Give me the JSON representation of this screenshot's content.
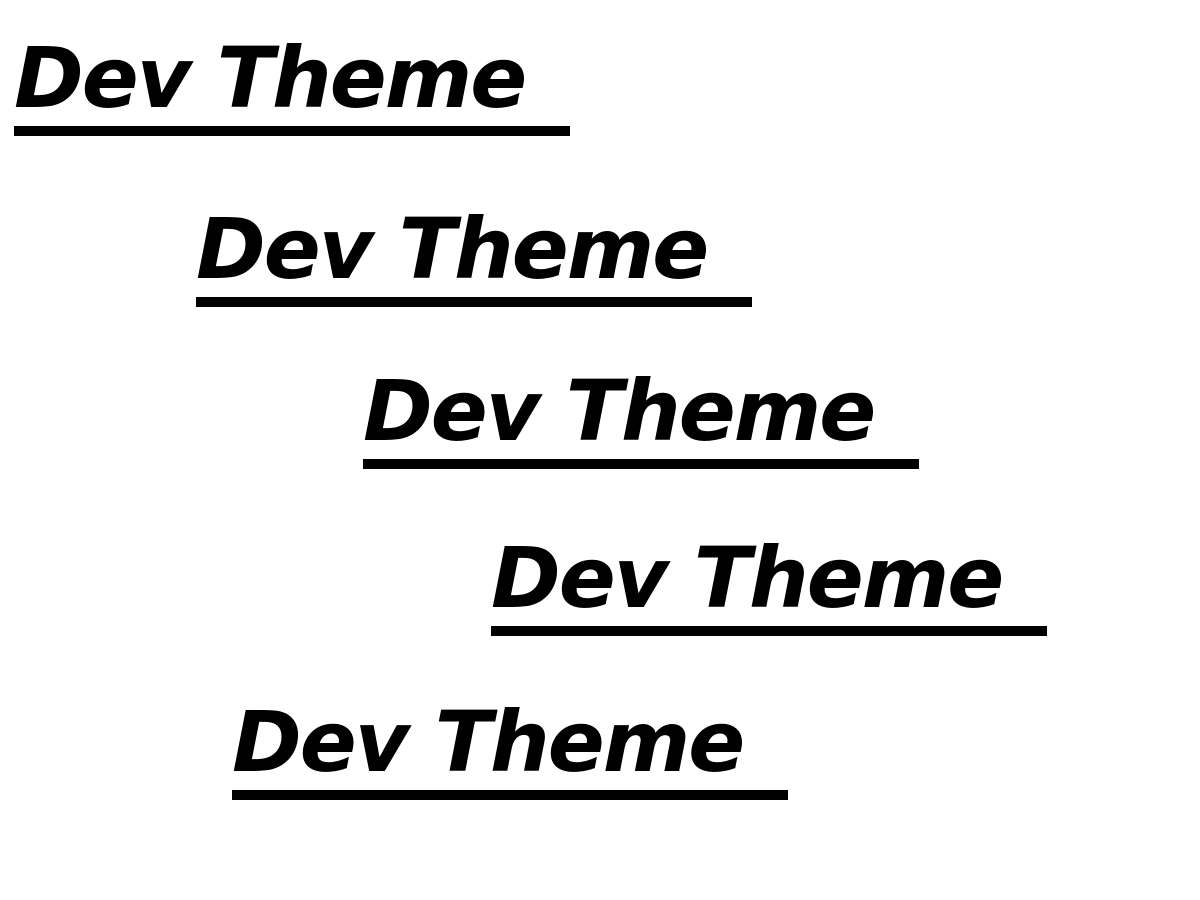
{
  "labels": [
    {
      "text": "Dev Theme"
    },
    {
      "text": "Dev Theme"
    },
    {
      "text": "Dev Theme"
    },
    {
      "text": "Dev Theme"
    },
    {
      "text": "Dev Theme"
    }
  ],
  "colors": {
    "background": "#ffffff",
    "text": "#000000",
    "underline": "#000000"
  }
}
